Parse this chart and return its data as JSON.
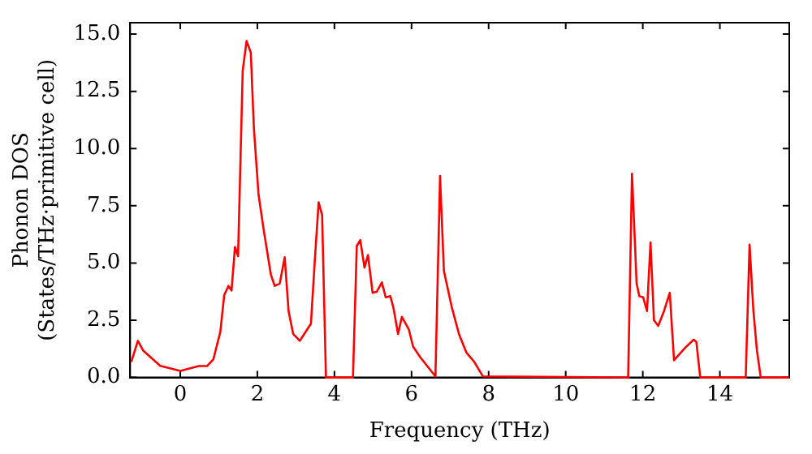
{
  "chart_data": {
    "type": "line",
    "xlabel": "Frequency (THz)",
    "ylabel": "Phonon DOS\n(States/THz·primitive cell)",
    "xlim": [
      -1.3,
      15.8
    ],
    "ylim": [
      0,
      15.5
    ],
    "xticks": [
      0,
      2,
      4,
      6,
      8,
      10,
      12,
      14
    ],
    "yticks": [
      {
        "value": 0,
        "label": "0.0"
      },
      {
        "value": 2.5,
        "label": "2.5"
      },
      {
        "value": 5,
        "label": "5.0"
      },
      {
        "value": 7.5,
        "label": "7.5"
      },
      {
        "value": 10,
        "label": "10.0"
      },
      {
        "value": 12.5,
        "label": "12.5"
      },
      {
        "value": 15,
        "label": "15.0"
      }
    ],
    "grid": false,
    "legend": false,
    "marker": "none",
    "line_style": "solid",
    "series": [
      {
        "color": "#ff0000",
        "x": [
          -1.27,
          -1.1,
          -0.96,
          -0.52,
          0,
          0.48,
          0.7,
          0.86,
          1.04,
          1.14,
          1.25,
          1.33,
          1.42,
          1.5,
          1.62,
          1.72,
          1.83,
          1.91,
          2.03,
          2.16,
          2.35,
          2.45,
          2.58,
          2.71,
          2.81,
          2.93,
          3.1,
          3.39,
          3.49,
          3.59,
          3.68,
          3.78,
          4.48,
          4.58,
          4.67,
          4.78,
          4.87,
          4.99,
          5.1,
          5.23,
          5.33,
          5.45,
          5.53,
          5.65,
          5.75,
          5.93,
          6.04,
          6.22,
          6.62,
          6.74,
          6.84,
          7.04,
          7.23,
          7.42,
          7.62,
          7.85,
          11.62,
          11.72,
          11.84,
          11.91,
          12.01,
          12.11,
          12.2,
          12.29,
          12.4,
          12.55,
          12.7,
          12.81,
          13.1,
          13.32,
          13.39,
          13.49,
          14.67,
          14.77,
          14.87,
          14.96,
          15.06,
          15.8
        ],
        "values": [
          0.68,
          1.6,
          1.17,
          0.51,
          0.29,
          0.5,
          0.5,
          0.8,
          2.0,
          3.6,
          4.0,
          3.8,
          5.7,
          5.3,
          13.4,
          14.7,
          14.2,
          10.9,
          8.0,
          6.5,
          4.5,
          4.0,
          4.1,
          5.25,
          2.9,
          1.9,
          1.6,
          2.35,
          5.1,
          7.65,
          7.1,
          0,
          0,
          5.75,
          6.0,
          4.8,
          5.35,
          3.7,
          3.75,
          4.15,
          3.5,
          3.55,
          3.05,
          1.9,
          2.65,
          2.1,
          1.35,
          0.9,
          0.05,
          8.8,
          4.65,
          3.1,
          1.9,
          1.1,
          0.7,
          0.05,
          0,
          8.9,
          4.1,
          3.55,
          3.5,
          2.9,
          5.9,
          2.5,
          2.25,
          2.9,
          3.7,
          0.75,
          1.3,
          1.65,
          1.55,
          0,
          0,
          5.8,
          2.9,
          1.2,
          0,
          0
        ]
      }
    ]
  }
}
